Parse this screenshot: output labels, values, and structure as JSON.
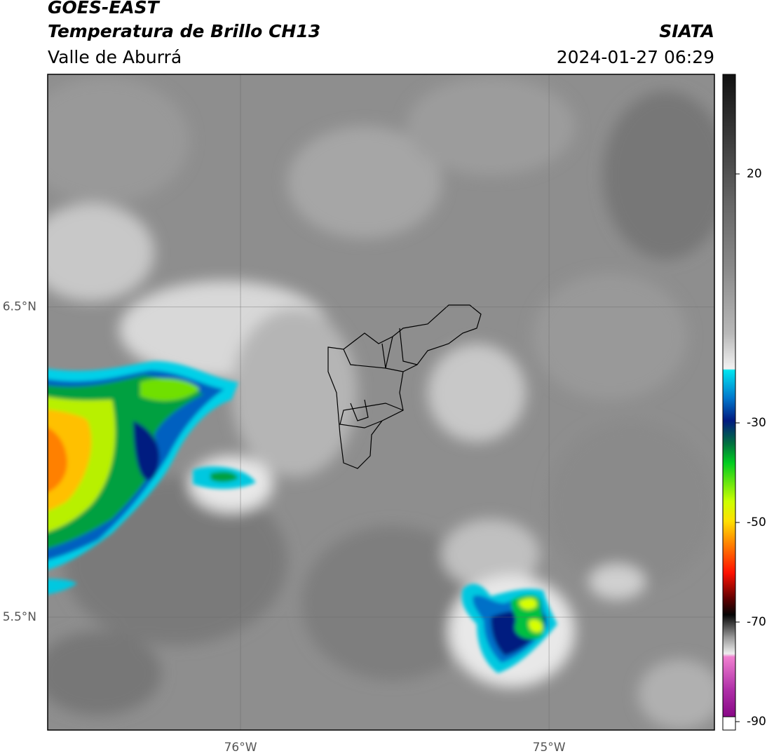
{
  "header": {
    "title": "GOES-EAST",
    "subtitle": "Temperatura de Brillo CH13",
    "region": "Valle de Aburrá",
    "source": "SIATA",
    "datetime": "2024-01-27 06:29"
  },
  "map": {
    "xlim": [
      -76.625,
      -74.464
    ],
    "ylim": [
      5.136,
      7.25
    ],
    "xticks": [
      {
        "value": -76,
        "label": "76°W"
      },
      {
        "value": -75,
        "label": "75°W"
      }
    ],
    "yticks": [
      {
        "value": 6.5,
        "label": "6.5°N"
      },
      {
        "value": 5.5,
        "label": "5.5°N"
      }
    ],
    "grid": true
  },
  "colorbar": {
    "lim": [
      -90,
      40
    ],
    "ticks": [
      20,
      -30,
      -50,
      -70,
      -90
    ]
  }
}
